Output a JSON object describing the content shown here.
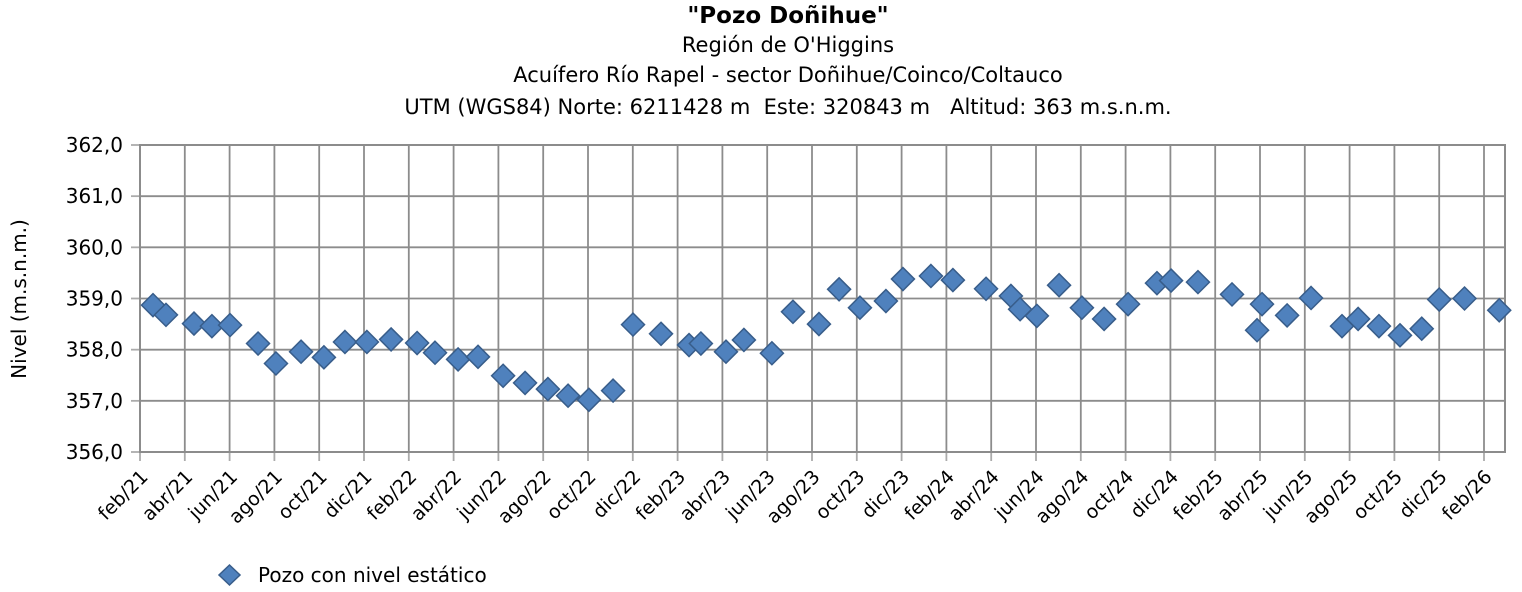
{
  "header": {
    "title": "\"Pozo Doñihue\"",
    "subtitle_region": "Región de O'Higgins",
    "subtitle_aquifer": "Acuífero Río Rapel - sector Doñihue/Coinco/Coltauco",
    "subtitle_utm": "UTM (WGS84) Norte: 6211428 m  Este: 320843 m   Altitud: 363 m.s.n.m."
  },
  "legend": {
    "marker": "diamond",
    "label": "Pozo con nivel estático"
  },
  "colors": {
    "marker_fill": "#4F81BD",
    "marker_border": "#385D8A",
    "gridline": "#8C8C8C",
    "outer_tick": "#ABABAB",
    "text": "#000000",
    "background": "#FFFFFF"
  },
  "chart_data": {
    "type": "scatter",
    "title": "\"Pozo Doñihue\"",
    "xlabel": "",
    "ylabel": "Nivel (m.s.n.m.)",
    "ylim": [
      356.0,
      362.0
    ],
    "y_tick_step": 1.0,
    "grid": true,
    "decimal_separator": ",",
    "y_tick_labels": [
      "362,0",
      "361,0",
      "360,0",
      "359,0",
      "358,0",
      "357,0",
      "356,0"
    ],
    "x_tick_labels": [
      "feb/21",
      "abr/21",
      "jun/21",
      "ago/21",
      "oct/21",
      "dic/21",
      "feb/22",
      "abr/22",
      "jun/22",
      "ago/22",
      "oct/22",
      "dic/22",
      "feb/23",
      "abr/23",
      "jun/23",
      "ago/23",
      "oct/23",
      "dic/23",
      "feb/24",
      "abr/24",
      "jun/24",
      "ago/24",
      "oct/24",
      "dic/24",
      "feb/25",
      "abr/25",
      "jun/25",
      "ago/25",
      "oct/25",
      "dic/25",
      "feb/26"
    ],
    "x_axis_note": "monthly measurements, t = months after feb/21, gridlines every 2 months",
    "legend_position": "bottom-left",
    "series": [
      {
        "name": "Pozo con nivel estático",
        "marker": "diamond",
        "points": [
          {
            "d": "feb/21",
            "t": 0.58,
            "v": 358.87
          },
          {
            "d": "mar/21",
            "t": 1.16,
            "v": 358.68
          },
          {
            "d": "abr/21",
            "t": 2.41,
            "v": 358.51
          },
          {
            "d": "may/21",
            "t": 3.21,
            "v": 358.46
          },
          {
            "d": "jun/21",
            "t": 4.02,
            "v": 358.48
          },
          {
            "d": "jul/21",
            "t": 5.27,
            "v": 358.12
          },
          {
            "d": "ago/21",
            "t": 6.07,
            "v": 357.73
          },
          {
            "d": "sep/21",
            "t": 7.19,
            "v": 357.96
          },
          {
            "d": "oct/21",
            "t": 8.21,
            "v": 357.85
          },
          {
            "d": "nov/21",
            "t": 9.15,
            "v": 358.15
          },
          {
            "d": "dic/21",
            "t": 10.13,
            "v": 358.15
          },
          {
            "d": "ene/22",
            "t": 11.21,
            "v": 358.2
          },
          {
            "d": "feb/22",
            "t": 12.37,
            "v": 358.13
          },
          {
            "d": "mar/22",
            "t": 13.17,
            "v": 357.94
          },
          {
            "d": "abr/22",
            "t": 14.2,
            "v": 357.81
          },
          {
            "d": "may/22",
            "t": 15.09,
            "v": 357.86
          },
          {
            "d": "jun/22",
            "t": 16.21,
            "v": 357.49
          },
          {
            "d": "jul/22",
            "t": 17.19,
            "v": 357.35
          },
          {
            "d": "ago/22",
            "t": 18.21,
            "v": 357.23
          },
          {
            "d": "sep/22",
            "t": 19.11,
            "v": 357.1
          },
          {
            "d": "oct/22",
            "t": 20.04,
            "v": 357.02
          },
          {
            "d": "nov/22",
            "t": 21.12,
            "v": 357.2
          },
          {
            "d": "dic/22",
            "t": 22.01,
            "v": 358.49
          },
          {
            "d": "ene/23",
            "t": 23.26,
            "v": 358.31
          },
          {
            "d": "feb/23",
            "t": 24.51,
            "v": 358.09
          },
          {
            "d": "mar/23",
            "t": 25.04,
            "v": 358.12
          },
          {
            "d": "abr/23",
            "t": 26.16,
            "v": 357.96
          },
          {
            "d": "may/23",
            "t": 26.96,
            "v": 358.19
          },
          {
            "d": "jun/23",
            "t": 28.21,
            "v": 357.93
          },
          {
            "d": "jul/23",
            "t": 29.15,
            "v": 358.74
          },
          {
            "d": "ago/23",
            "t": 30.31,
            "v": 358.5
          },
          {
            "d": "sep/23",
            "t": 31.21,
            "v": 359.18
          },
          {
            "d": "oct/23",
            "t": 32.14,
            "v": 358.82
          },
          {
            "d": "nov/23",
            "t": 33.3,
            "v": 358.95
          },
          {
            "d": "dic/23",
            "t": 34.06,
            "v": 359.38
          },
          {
            "d": "ene/24",
            "t": 35.31,
            "v": 359.44
          },
          {
            "d": "feb/24",
            "t": 36.29,
            "v": 359.36
          },
          {
            "d": "mar/24",
            "t": 37.77,
            "v": 359.19
          },
          {
            "d": "abr/24",
            "t": 38.88,
            "v": 359.05
          },
          {
            "d": "may/24",
            "t": 39.29,
            "v": 358.79
          },
          {
            "d": "jun/24",
            "t": 40.04,
            "v": 358.66
          },
          {
            "d": "jul/24",
            "t": 41.03,
            "v": 359.26
          },
          {
            "d": "ago/24",
            "t": 42.05,
            "v": 358.82
          },
          {
            "d": "sep/24",
            "t": 43.04,
            "v": 358.6
          },
          {
            "d": "oct/24",
            "t": 44.11,
            "v": 358.89
          },
          {
            "d": "nov/24",
            "t": 45.4,
            "v": 359.3
          },
          {
            "d": "dic/24",
            "t": 46.03,
            "v": 359.35
          },
          {
            "d": "ene/25",
            "t": 47.23,
            "v": 359.32
          },
          {
            "d": "feb/25",
            "t": 48.75,
            "v": 359.08
          },
          {
            "d": "mar/25",
            "t": 49.87,
            "v": 358.38
          },
          {
            "d": "abr/25",
            "t": 50.09,
            "v": 358.89
          },
          {
            "d": "may/25",
            "t": 51.21,
            "v": 358.67
          },
          {
            "d": "jun/25",
            "t": 52.28,
            "v": 359.01
          },
          {
            "d": "jul/25",
            "t": 53.66,
            "v": 358.46
          },
          {
            "d": "ago/25",
            "t": 54.38,
            "v": 358.6
          },
          {
            "d": "sep/25",
            "t": 55.31,
            "v": 358.46
          },
          {
            "d": "oct/25",
            "t": 56.25,
            "v": 358.28
          },
          {
            "d": "nov/25",
            "t": 57.22,
            "v": 358.41
          },
          {
            "d": "dic/25",
            "t": 58.0,
            "v": 358.98
          },
          {
            "d": "ene/26",
            "t": 59.13,
            "v": 359.0
          },
          {
            "d": "feb/26",
            "t": 60.68,
            "v": 358.77
          }
        ]
      }
    ]
  }
}
